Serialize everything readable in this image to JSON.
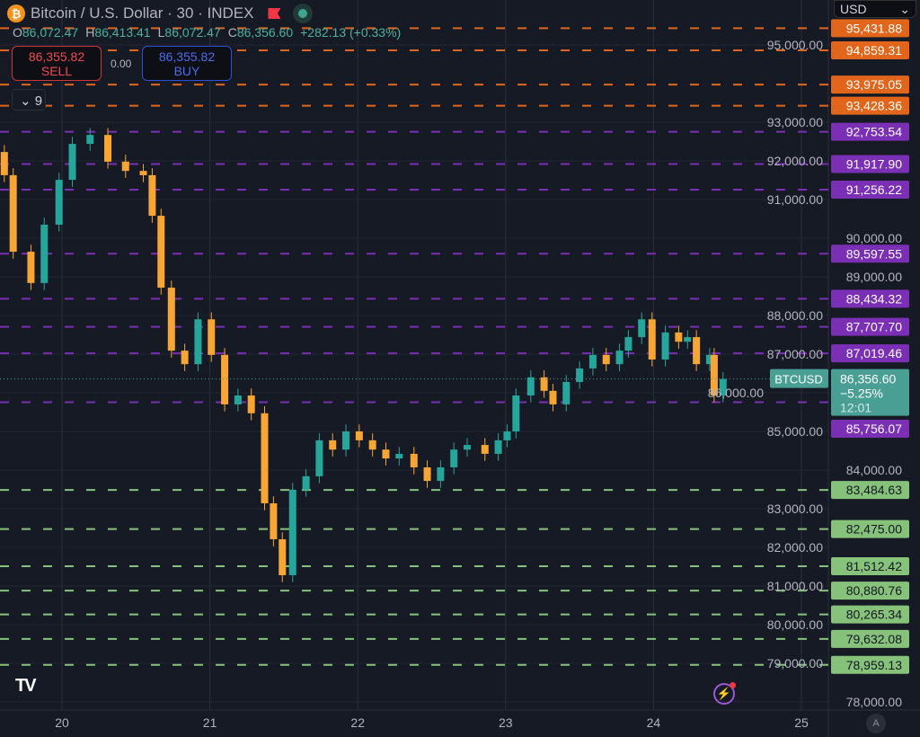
{
  "header": {
    "symbol_icon": "bitcoin-icon",
    "title": "Bitcoin / U.S. Dollar · 30 · INDEX",
    "ohlc": {
      "o_label": "O",
      "o": "86,072.47",
      "h_label": "H",
      "h": "86,413.41",
      "l_label": "L",
      "l": "86,072.47",
      "c_label": "C",
      "c": "86,356.60",
      "change": "+282.13 (+0.33%)"
    }
  },
  "trade": {
    "sell_price": "86,355.82",
    "sell_label": "SELL",
    "spread": "0.00",
    "buy_price": "86,355.82",
    "buy_label": "BUY"
  },
  "indicators_toggle": {
    "icon": "chevron-down-icon",
    "count": "9"
  },
  "currency": {
    "value": "USD"
  },
  "current_price": {
    "symbol": "BTCUSD",
    "price": "86,356.60",
    "change": "−5.25%",
    "countdown": "12:01",
    "color": "#4a9f94"
  },
  "colors": {
    "up": "#26a69a",
    "down": "#f7a534",
    "resistance_orange": "#e1661c",
    "purple": "#7b2fb5",
    "support_green": "#86c27a",
    "background": "#161a25"
  },
  "chart_data": {
    "type": "candlestick",
    "interval": "30",
    "x_ticks": [
      "20",
      "21",
      "22",
      "23",
      "24",
      "25"
    ],
    "x_range": [
      19.58,
      25.2
    ],
    "ylim": [
      77600,
      96200
    ],
    "y_ticks": [
      "78,000.00",
      "79,000.00",
      "80,000.00",
      "81,000.00",
      "82,000.00",
      "83,000.00",
      "84,000.00",
      "85,000.00",
      "86,000.00",
      "87,000.00",
      "88,000.00",
      "89,000.00",
      "90,000.00",
      "91,000.00",
      "92,000.00",
      "93,000.00",
      "95,000.00"
    ],
    "closes": [
      [
        19.61,
        91630
      ],
      [
        19.67,
        89650
      ],
      [
        19.79,
        88840
      ],
      [
        19.88,
        90350
      ],
      [
        19.98,
        91510
      ],
      [
        20.07,
        92440
      ],
      [
        20.19,
        92670
      ],
      [
        20.31,
        91980
      ],
      [
        20.43,
        91740
      ],
      [
        20.55,
        91630
      ],
      [
        20.61,
        90580
      ],
      [
        20.67,
        88720
      ],
      [
        20.74,
        87090
      ],
      [
        20.83,
        86740
      ],
      [
        20.92,
        87900
      ],
      [
        21.01,
        86980
      ],
      [
        21.1,
        85700
      ],
      [
        21.19,
        85930
      ],
      [
        21.28,
        85470
      ],
      [
        21.37,
        83140
      ],
      [
        21.43,
        82210
      ],
      [
        21.49,
        81280
      ],
      [
        21.56,
        83490
      ],
      [
        21.65,
        83840
      ],
      [
        21.74,
        84770
      ],
      [
        21.83,
        84530
      ],
      [
        21.92,
        85000
      ],
      [
        22.01,
        84770
      ],
      [
        22.1,
        84530
      ],
      [
        22.19,
        84300
      ],
      [
        22.28,
        84420
      ],
      [
        22.38,
        84070
      ],
      [
        22.47,
        83720
      ],
      [
        22.56,
        84070
      ],
      [
        22.65,
        84530
      ],
      [
        22.74,
        84650
      ],
      [
        22.86,
        84420
      ],
      [
        22.95,
        84770
      ],
      [
        23.01,
        85000
      ],
      [
        23.07,
        85930
      ],
      [
        23.17,
        86400
      ],
      [
        23.26,
        86050
      ],
      [
        23.32,
        85700
      ],
      [
        23.41,
        86280
      ],
      [
        23.5,
        86630
      ],
      [
        23.59,
        86980
      ],
      [
        23.68,
        86740
      ],
      [
        23.77,
        87090
      ],
      [
        23.83,
        87440
      ],
      [
        23.92,
        87900
      ],
      [
        23.99,
        86860
      ],
      [
        24.08,
        87560
      ],
      [
        24.17,
        87320
      ],
      [
        24.23,
        87440
      ],
      [
        24.29,
        86740
      ],
      [
        24.38,
        86980
      ],
      [
        24.41,
        85930
      ],
      [
        24.47,
        86356.6
      ]
    ],
    "levels": [
      {
        "price": 95431.88,
        "label": "95,431.88",
        "kind": "orange"
      },
      {
        "price": 94859.31,
        "label": "94,859.31",
        "kind": "orange"
      },
      {
        "price": 93975.05,
        "label": "93,975.05",
        "kind": "orange"
      },
      {
        "price": 93428.36,
        "label": "93,428.36",
        "kind": "orange"
      },
      {
        "price": 92753.54,
        "label": "92,753.54",
        "kind": "purple"
      },
      {
        "price": 91917.9,
        "label": "91,917.90",
        "kind": "purple"
      },
      {
        "price": 91256.22,
        "label": "91,256.22",
        "kind": "purple"
      },
      {
        "price": 89597.55,
        "label": "89,597.55",
        "kind": "purple"
      },
      {
        "price": 88434.32,
        "label": "88,434.32",
        "kind": "purple"
      },
      {
        "price": 87707.7,
        "label": "87,707.70",
        "kind": "purple"
      },
      {
        "price": 87019.46,
        "label": "87,019.46",
        "kind": "purple"
      },
      {
        "price": 85756.07,
        "label": "85,756.07",
        "kind": "purple"
      },
      {
        "price": 83484.63,
        "label": "83,484.63",
        "kind": "green"
      },
      {
        "price": 82475.0,
        "label": "82,475.00",
        "kind": "green"
      },
      {
        "price": 81512.42,
        "label": "81,512.42",
        "kind": "green"
      },
      {
        "price": 80880.76,
        "label": "80,880.76",
        "kind": "green"
      },
      {
        "price": 80265.34,
        "label": "80,265.34",
        "kind": "green"
      },
      {
        "price": 79632.08,
        "label": "79,632.08",
        "kind": "green"
      },
      {
        "price": 78959.13,
        "label": "78,959.13",
        "kind": "green"
      }
    ]
  },
  "footer": {
    "logo": "TV",
    "alert_icon": "lightning-icon",
    "auto_scale": "A"
  }
}
